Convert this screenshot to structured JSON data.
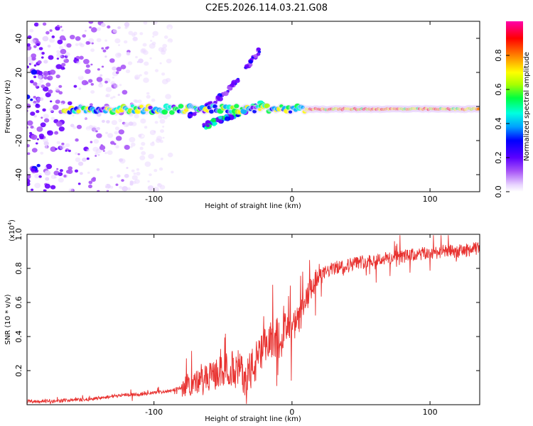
{
  "title": "C2E5.2026.114.03.21.G08",
  "colors": {
    "snr_line": "#e8312f",
    "frame": "#000000",
    "colormap": [
      "#ffffff",
      "#e9d5ff",
      "#a855f7",
      "#6a00ff",
      "#0000ff",
      "#00b0ff",
      "#00ffd0",
      "#00ff40",
      "#aaff00",
      "#ffff00",
      "#ff8000",
      "#ff0000",
      "#ff00aa"
    ]
  },
  "chart_data": [
    {
      "type": "heatmap",
      "title": "C2E5.2026.114.03.21.G08",
      "xlabel": "Height of straight line (km)",
      "ylabel": "Frequency (Hz)",
      "xlim": [
        -192,
        136
      ],
      "ylim": [
        -50,
        50
      ],
      "xticks": [
        -100,
        0,
        100
      ],
      "xtick_labels": [
        "-100",
        "0",
        "100"
      ],
      "yticks": [
        -40,
        -20,
        0,
        20,
        40
      ],
      "ytick_labels": [
        "-40",
        "-20",
        "0",
        "20",
        "40"
      ],
      "colorbar": {
        "label": "Normalized spectral amplitude",
        "range": [
          0,
          1
        ],
        "ticks": [
          0.0,
          0.2,
          0.4,
          0.6,
          0.8
        ],
        "tick_labels": [
          "0.0",
          "0.2",
          "0.4",
          "0.6",
          "0.8"
        ]
      },
      "features": [
        {
          "name": "main-track",
          "x_range": [
            -165,
            136
          ],
          "freq": -1.5,
          "amplitude_mean": 0.6
        },
        {
          "name": "rising-branch",
          "x_range": [
            -75,
            -22
          ],
          "freq_range": [
            -5,
            35
          ],
          "amplitude_mean": 0.25
        },
        {
          "name": "falling-branch",
          "x_range": [
            -65,
            -20
          ],
          "freq_range": [
            -12,
            2
          ],
          "amplitude_mean": 0.4
        },
        {
          "name": "noise-region",
          "x_range": [
            -192,
            -120
          ],
          "freq_range": [
            -50,
            50
          ],
          "amplitude_mean": 0.15
        }
      ]
    },
    {
      "type": "line",
      "title": "",
      "xlabel": "Height of straight line (km)",
      "ylabel": "SNR (10 * v/v)",
      "scale_label": "(x10",
      "scale_exp": "4",
      "scale_close": ")",
      "xlim": [
        -192,
        136
      ],
      "ylim": [
        0,
        1.0
      ],
      "xticks": [
        -100,
        0,
        100
      ],
      "xtick_labels": [
        "-100",
        "0",
        "100"
      ],
      "yticks": [
        0.2,
        0.4,
        0.6,
        0.8,
        1.0
      ],
      "ytick_labels": [
        "0.2",
        "0.4",
        "0.6",
        "0.8",
        "1.0"
      ],
      "series": [
        {
          "name": "SNR",
          "x": [
            -192,
            -180,
            -170,
            -160,
            -150,
            -140,
            -130,
            -120,
            -110,
            -100,
            -90,
            -80,
            -70,
            -60,
            -50,
            -40,
            -35,
            -30,
            -25,
            -20,
            -15,
            -10,
            -5,
            0,
            5,
            10,
            15,
            20,
            30,
            40,
            50,
            60,
            70,
            80,
            90,
            100,
            110,
            120,
            130,
            136
          ],
          "values": [
            0.02,
            0.02,
            0.02,
            0.03,
            0.03,
            0.04,
            0.05,
            0.06,
            0.06,
            0.07,
            0.08,
            0.1,
            0.13,
            0.16,
            0.2,
            0.22,
            0.18,
            0.2,
            0.26,
            0.32,
            0.38,
            0.42,
            0.44,
            0.44,
            0.5,
            0.6,
            0.7,
            0.76,
            0.8,
            0.82,
            0.84,
            0.85,
            0.86,
            0.87,
            0.88,
            0.89,
            0.9,
            0.9,
            0.91,
            0.92
          ]
        }
      ]
    }
  ]
}
